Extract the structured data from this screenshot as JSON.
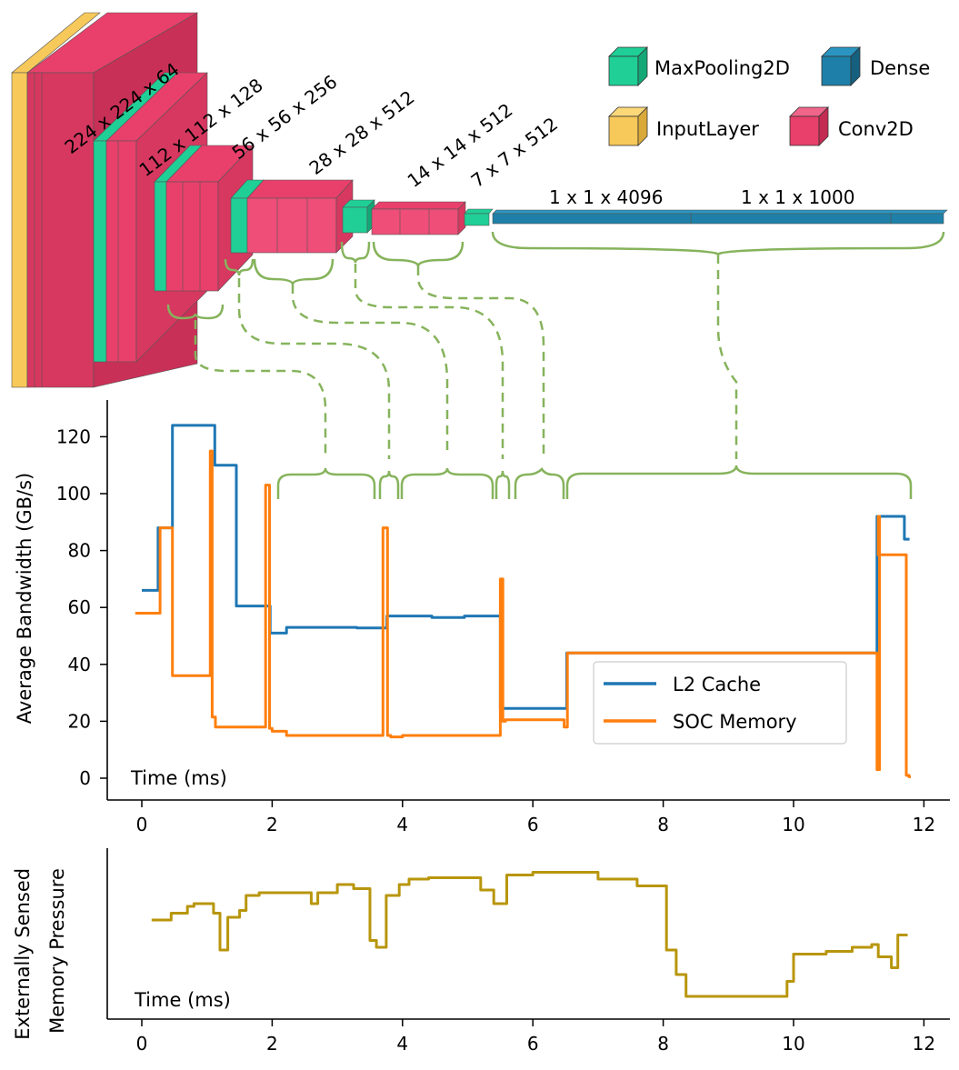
{
  "legend": {
    "layer_types": [
      {
        "name": "MaxPooling2D",
        "color": "#1fcf96"
      },
      {
        "name": "Dense",
        "color": "#1e80a8"
      },
      {
        "name": "InputLayer",
        "color": "#f7c95a"
      },
      {
        "name": "Conv2D",
        "color": "#e8406b"
      }
    ]
  },
  "architecture": {
    "dimension_labels": [
      "224 x 224 x 64",
      "112 x 112 x 128",
      "56 x 56 x 256",
      "28 x 28 x 512",
      "14 x 14 x 512",
      "7 x 7 x 512",
      "1 x 1 x 4096",
      "1 x 1 x 1000"
    ]
  },
  "colors": {
    "l2_cache": "#1f77b4",
    "soc_memory": "#ff7f0e",
    "pressure": "#b8960c",
    "bracket": "#86b35c"
  },
  "chart_data": [
    {
      "type": "line",
      "ylabel": "Average Bandwidth (GB/s)",
      "xlabel": "Time (ms)",
      "xlim": [
        -0.5,
        12.4
      ],
      "ylim": [
        -8,
        126
      ],
      "xticks": [
        "0",
        "2",
        "4",
        "6",
        "8",
        "10",
        "12"
      ],
      "yticks": [
        "0",
        "20",
        "40",
        "60",
        "80",
        "100",
        "120"
      ],
      "legend_position": "center-right",
      "series": [
        {
          "name": "L2 Cache",
          "x": [
            0,
            0.25,
            0.25,
            0.47,
            0.47,
            1.12,
            1.12,
            1.45,
            1.45,
            1.97,
            1.97,
            2.22,
            2.22,
            3.3,
            3.3,
            3.76,
            3.76,
            4.45,
            4.45,
            4.95,
            4.95,
            5.5,
            5.5,
            6.52,
            6.52,
            11.28,
            11.28,
            11.7,
            11.7,
            11.78
          ],
          "values": [
            66,
            66,
            88,
            88,
            124,
            124,
            110,
            110,
            60.5,
            60.5,
            51,
            51,
            53,
            53,
            52.8,
            52.8,
            57,
            57,
            56.5,
            56.5,
            57,
            57,
            24.5,
            24.5,
            44,
            44,
            92,
            92,
            84,
            84
          ]
        },
        {
          "name": "SOC Memory",
          "x": [
            -0.1,
            0.28,
            0.28,
            0.47,
            0.47,
            1.05,
            1.05,
            1.08,
            1.08,
            1.13,
            1.13,
            1.42,
            1.42,
            1.9,
            1.9,
            1.96,
            1.96,
            2.0,
            2.0,
            2.22,
            2.22,
            2.4,
            2.4,
            3.7,
            3.7,
            3.77,
            3.77,
            3.82,
            3.82,
            4.0,
            4.0,
            5.5,
            5.5,
            5.54,
            5.54,
            5.58,
            5.58,
            6.48,
            6.48,
            6.53,
            6.53,
            11.28,
            11.28,
            11.32,
            11.32,
            11.3,
            11.3,
            11.65,
            11.65,
            11.73,
            11.73,
            11.77,
            11.77,
            11.8
          ],
          "values": [
            58,
            58,
            88,
            88,
            36,
            36,
            115,
            115,
            21.5,
            21.5,
            18,
            18,
            18,
            18,
            103,
            103,
            17.5,
            17.5,
            16.5,
            16.5,
            15,
            15,
            15,
            15,
            88,
            88,
            15,
            15,
            14.5,
            14.5,
            15,
            15,
            70,
            70,
            20,
            20,
            20.5,
            20.5,
            18,
            18,
            44,
            44,
            3,
            3,
            92,
            92,
            78.5,
            78.5,
            78.5,
            78.5,
            1,
            1,
            0.5,
            0.5
          ]
        }
      ],
      "annotations": [
        {
          "text": "Time (ms)"
        }
      ]
    },
    {
      "type": "line",
      "ylabel": "Externally Sensed\nMemory Pressure",
      "xlabel": "Time (ms)",
      "xlim": [
        -0.5,
        12.4
      ],
      "ylim": [
        0,
        1
      ],
      "xticks": [
        "0",
        "2",
        "4",
        "6",
        "8",
        "10",
        "12"
      ],
      "yticks": [],
      "series": [
        {
          "name": "",
          "x": [
            0.15,
            0.45,
            0.45,
            0.7,
            0.7,
            0.8,
            0.8,
            1.1,
            1.1,
            1.2,
            1.2,
            1.32,
            1.32,
            1.5,
            1.5,
            1.6,
            1.6,
            1.8,
            1.8,
            2.0,
            2.0,
            2.6,
            2.6,
            2.7,
            2.7,
            3.0,
            3.0,
            3.25,
            3.25,
            3.5,
            3.5,
            3.6,
            3.6,
            3.75,
            3.75,
            3.95,
            3.95,
            4.1,
            4.1,
            4.4,
            4.4,
            5.2,
            5.2,
            5.4,
            5.4,
            5.6,
            5.6,
            6.0,
            6.0,
            7.0,
            7.0,
            7.6,
            7.6,
            8.05,
            8.05,
            8.2,
            8.2,
            8.35,
            8.35,
            9.9,
            9.9,
            10.0,
            10.0,
            10.5,
            10.5,
            10.9,
            10.9,
            11.2,
            11.2,
            11.3,
            11.3,
            11.5,
            11.5,
            11.6,
            11.6,
            11.75
          ],
          "values": [
            0.6,
            0.6,
            0.65,
            0.65,
            0.7,
            0.7,
            0.72,
            0.72,
            0.65,
            0.65,
            0.38,
            0.38,
            0.62,
            0.62,
            0.67,
            0.67,
            0.78,
            0.78,
            0.8,
            0.8,
            0.8,
            0.8,
            0.72,
            0.72,
            0.8,
            0.8,
            0.86,
            0.86,
            0.83,
            0.83,
            0.45,
            0.45,
            0.4,
            0.4,
            0.78,
            0.78,
            0.86,
            0.86,
            0.9,
            0.9,
            0.91,
            0.91,
            0.82,
            0.82,
            0.72,
            0.72,
            0.93,
            0.93,
            0.95,
            0.95,
            0.9,
            0.9,
            0.85,
            0.85,
            0.38,
            0.38,
            0.2,
            0.2,
            0.04,
            0.04,
            0.15,
            0.15,
            0.35,
            0.35,
            0.37,
            0.37,
            0.4,
            0.4,
            0.42,
            0.42,
            0.33,
            0.33,
            0.25,
            0.25,
            0.49,
            0.49
          ],
          "color": "#b8960c"
        }
      ],
      "annotations": [
        {
          "text": "Time (ms)"
        }
      ]
    }
  ]
}
